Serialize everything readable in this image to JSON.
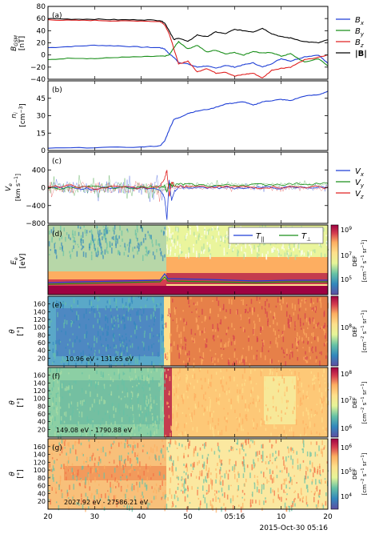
{
  "figure": {
    "date_label": "2015-Oct-30 05:16",
    "x_ticks": [
      "20",
      "30",
      "40",
      "50",
      "05:16",
      "10",
      "20"
    ]
  },
  "chart_data": [
    {
      "id": "a",
      "panel_label": "(a)",
      "type": "line",
      "ylabel": "B_GSM",
      "yunit": "[nT]",
      "ylim": [
        -40,
        80
      ],
      "yticks": [
        "80",
        "60",
        "40",
        "20",
        "0",
        "-20",
        "-40"
      ],
      "x": [
        20,
        25,
        30,
        35,
        40,
        44,
        45,
        46,
        47,
        48,
        50,
        52,
        54,
        56,
        58,
        60,
        62,
        64,
        66,
        68,
        70,
        72,
        75,
        78,
        80
      ],
      "series": [
        {
          "name": "B_x",
          "legend_label": "B",
          "legend_sub": "x",
          "color": "#1f3fd6",
          "values": [
            12,
            14,
            16,
            15,
            13,
            12,
            10,
            2,
            -4,
            -12,
            -15,
            -20,
            -18,
            -22,
            -17,
            -20,
            -16,
            -13,
            -20,
            -14,
            -6,
            -10,
            -3,
            0,
            -14
          ]
        },
        {
          "name": "B_y",
          "legend_label": "B",
          "legend_sub": "y",
          "color": "#1a8f1a",
          "values": [
            -8,
            -5,
            -6,
            -4,
            -3,
            -2,
            -2,
            0,
            12,
            22,
            10,
            16,
            5,
            8,
            2,
            4,
            0,
            6,
            3,
            4,
            -2,
            2,
            -12,
            -6,
            -18
          ]
        },
        {
          "name": "B_z",
          "legend_label": "B",
          "legend_sub": "z",
          "color": "#e02020",
          "values": [
            58,
            57,
            57,
            56,
            56,
            55,
            50,
            35,
            10,
            -15,
            -10,
            -28,
            -22,
            -30,
            -28,
            -35,
            -32,
            -30,
            -38,
            -25,
            -22,
            -20,
            -8,
            -4,
            0
          ]
        },
        {
          "name": "|B|",
          "legend_label": "|B|",
          "legend_sub": "",
          "color": "#000000",
          "values": [
            60,
            59,
            59,
            58,
            58,
            57,
            53,
            40,
            25,
            28,
            22,
            33,
            30,
            38,
            35,
            42,
            40,
            38,
            44,
            35,
            30,
            28,
            22,
            20,
            25
          ]
        }
      ]
    },
    {
      "id": "b",
      "panel_label": "(b)",
      "type": "line",
      "ylabel": "n_i",
      "yunit": "[cm^-3]",
      "ylim": [
        0,
        60
      ],
      "yticks": [
        "45",
        "30",
        "15",
        "0"
      ],
      "x": [
        20,
        30,
        40,
        44,
        45,
        46,
        47,
        48,
        50,
        52,
        55,
        58,
        60,
        62,
        64,
        66,
        68,
        70,
        72,
        75,
        78,
        80
      ],
      "series": [
        {
          "name": "n_i",
          "color": "#1f3fd6",
          "values": [
            2,
            2.5,
            3,
            4,
            8,
            18,
            27,
            28,
            32,
            34,
            36,
            40,
            41,
            42,
            39,
            42,
            43,
            44,
            43,
            47,
            48,
            51
          ]
        }
      ]
    },
    {
      "id": "c",
      "panel_label": "(c)",
      "type": "line",
      "ylabel": "V_e",
      "yunit": "[km s^-1]",
      "ylim": [
        -800,
        800
      ],
      "yticks": [
        "400",
        "0",
        "-400",
        "-800"
      ],
      "x": [
        20,
        25,
        30,
        35,
        40,
        44,
        45,
        45.5,
        46,
        46.5,
        47,
        48,
        50,
        55,
        60,
        65,
        70,
        75,
        80
      ],
      "series": [
        {
          "name": "V_x",
          "legend_label": "V",
          "legend_sub": "x",
          "color": "#1f3fd6",
          "values": [
            -20,
            10,
            -30,
            20,
            0,
            -40,
            -200,
            -720,
            150,
            -300,
            -100,
            20,
            10,
            5,
            0,
            5,
            -5,
            10,
            0
          ]
        },
        {
          "name": "V_y",
          "legend_label": "V",
          "legend_sub": "y",
          "color": "#1a8f1a",
          "values": [
            0,
            -10,
            20,
            0,
            10,
            20,
            50,
            -100,
            80,
            40,
            60,
            80,
            70,
            50,
            60,
            70,
            80,
            90,
            100
          ]
        },
        {
          "name": "V_z",
          "legend_label": "V",
          "legend_sub": "z",
          "color": "#e02020",
          "values": [
            10,
            40,
            -20,
            30,
            -10,
            20,
            200,
            400,
            -200,
            150,
            60,
            30,
            20,
            10,
            20,
            10,
            15,
            20,
            10
          ]
        }
      ]
    },
    {
      "id": "d",
      "panel_label": "(d)",
      "type": "heatmap",
      "ylabel": "E_e",
      "yunit": "[eV]",
      "cbar_label": "DEF",
      "cbar_unit": "[cm^-2 s^-1 sr^-1]",
      "cbar_ticks": [
        "10^9",
        "10^7",
        "10^5"
      ],
      "series": [
        {
          "name": "T_par",
          "legend_label": "T",
          "legend_sub": "||",
          "color": "#1f3fd6"
        },
        {
          "name": "T_perp",
          "legend_label": "T",
          "legend_sub": "⊥",
          "color": "#1a8f1a"
        }
      ]
    },
    {
      "id": "e",
      "panel_label": "(e)",
      "type": "heatmap",
      "ylabel": "θ",
      "yunit": "[°]",
      "yticks": [
        "160",
        "140",
        "120",
        "100",
        "80",
        "60",
        "40",
        "20"
      ],
      "energy_range": "10.96 eV - 131.65 eV",
      "cbar_label": "DEF",
      "cbar_unit": "[cm^-2 s^-1 sr^-1]",
      "cbar_ticks": [
        "10^8"
      ]
    },
    {
      "id": "f",
      "panel_label": "(f)",
      "type": "heatmap",
      "ylabel": "θ",
      "yunit": "[°]",
      "yticks": [
        "160",
        "140",
        "120",
        "100",
        "80",
        "60",
        "40",
        "20"
      ],
      "energy_range": "149.08 eV - 1790.88 eV",
      "cbar_label": "DEF",
      "cbar_unit": "[cm^-2 s^-1 sr^-1]",
      "cbar_ticks": [
        "10^8",
        "10^7",
        "10^6"
      ]
    },
    {
      "id": "g",
      "panel_label": "(g)",
      "type": "heatmap",
      "ylabel": "θ",
      "yunit": "[°]",
      "yticks": [
        "160",
        "140",
        "120",
        "100",
        "80",
        "60",
        "40",
        "20"
      ],
      "energy_range": "2027.92 eV - 27586.21 eV",
      "cbar_label": "DEF",
      "cbar_unit": "[cm^-2 s^-1 sr^-1]",
      "cbar_ticks": [
        "10^6",
        "10^5",
        "10^4"
      ]
    }
  ]
}
